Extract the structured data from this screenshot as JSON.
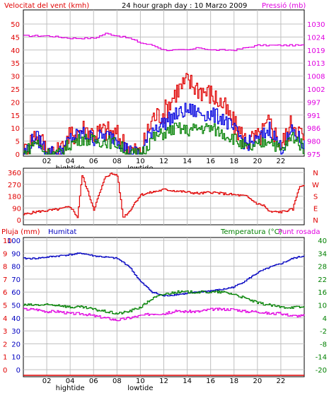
{
  "chart_data": [
    {
      "type": "line",
      "title": "24 hour graph day : 10 Marzo 2009",
      "left_axis_label": "Velocitat del vent (kmh)",
      "right_axis_label": "Pressió (mb)",
      "left_ticks": [
        "50",
        "45",
        "40",
        "35",
        "30",
        "25",
        "20",
        "15",
        "10",
        "5",
        "0"
      ],
      "right_ticks": [
        "1030",
        "1024",
        "1019",
        "1013",
        "1008",
        "1002",
        "997",
        "991",
        "986",
        "980",
        "975"
      ],
      "ylim_left": [
        0,
        50
      ],
      "ylim_right": [
        975,
        1030
      ],
      "x_ticks": [
        "02",
        "04",
        "06",
        "08",
        "10",
        "12",
        "14",
        "16",
        "18",
        "20",
        "22"
      ],
      "tide_labels": [
        {
          "hour": "04",
          "text": "hightide"
        },
        {
          "hour": "10",
          "text": "lowtide"
        }
      ],
      "series": [
        {
          "color": "#e000e0",
          "axis": "right",
          "x": [
            0,
            2,
            4,
            5,
            6,
            7,
            8,
            9,
            10,
            11,
            12,
            13,
            14,
            15,
            16,
            17,
            18,
            19,
            20,
            21,
            22,
            23,
            24
          ],
          "values": [
            1025,
            1025,
            1024,
            1024,
            1024,
            1026,
            1025,
            1024,
            1022,
            1021,
            1019,
            1019,
            1019,
            1020,
            1019,
            1019,
            1019,
            1020,
            1021,
            1021,
            1021,
            1021,
            1021
          ]
        },
        {
          "color": "#e00000",
          "axis": "left",
          "x": [
            0,
            1,
            2,
            3,
            4,
            5,
            6,
            7,
            8,
            9,
            10,
            11,
            12,
            13,
            14,
            15,
            16,
            17,
            18,
            19,
            20,
            21,
            22,
            23,
            24
          ],
          "values": [
            0,
            8,
            2,
            0,
            7,
            10,
            8,
            9,
            7,
            2,
            0,
            14,
            16,
            24,
            28,
            25,
            23,
            19,
            11,
            5,
            6,
            12,
            3,
            13,
            5
          ]
        },
        {
          "color": "#0000e0",
          "axis": "left",
          "x": [
            0,
            1,
            2,
            3,
            4,
            5,
            6,
            7,
            8,
            9,
            10,
            11,
            12,
            13,
            14,
            15,
            16,
            17,
            18,
            19,
            20,
            21,
            22,
            23,
            24
          ],
          "values": [
            0,
            7,
            1,
            0,
            6,
            8,
            6,
            7,
            6,
            1,
            0,
            10,
            12,
            15,
            17,
            16,
            15,
            14,
            9,
            4,
            5,
            10,
            2,
            9,
            3
          ]
        },
        {
          "color": "#008000",
          "axis": "left",
          "x": [
            0,
            1,
            2,
            3,
            4,
            5,
            6,
            7,
            8,
            9,
            10,
            11,
            12,
            13,
            14,
            15,
            16,
            17,
            18,
            19,
            20,
            21,
            22,
            23,
            24
          ],
          "values": [
            0,
            5,
            0,
            0,
            4,
            6,
            5,
            5,
            4,
            0,
            0,
            6,
            8,
            10,
            9,
            10,
            10,
            8,
            6,
            2,
            3,
            6,
            1,
            7,
            2
          ]
        }
      ]
    },
    {
      "type": "line",
      "left_ticks": [
        "360",
        "270",
        "180",
        "90",
        "0"
      ],
      "right_ticks": [
        "N",
        "W",
        "S",
        "E",
        "N"
      ],
      "ylim": [
        0,
        360
      ],
      "series": [
        {
          "color": "#e00000",
          "x": [
            0,
            1,
            2,
            3,
            4,
            4.6,
            5,
            6,
            7,
            7.5,
            8,
            8.5,
            9,
            9.5,
            10,
            11,
            12,
            13,
            14,
            15,
            16,
            17,
            18,
            19,
            19.5,
            20,
            20.5,
            21,
            22,
            23,
            23.5,
            24
          ],
          "values": [
            40,
            60,
            70,
            80,
            100,
            20,
            340,
            80,
            330,
            350,
            340,
            20,
            60,
            130,
            190,
            210,
            230,
            220,
            210,
            200,
            210,
            200,
            190,
            180,
            150,
            120,
            110,
            60,
            60,
            80,
            240,
            270
          ]
        }
      ]
    },
    {
      "type": "line",
      "left_axis_label": "Pluja (mm)",
      "left_axis_label2": "Humitat",
      "right_axis_label": "Temperatura (°C)",
      "right_axis_label2": "Punt rosada",
      "left_ticks": [
        {
          "rain": "10",
          "hum": "100"
        },
        {
          "rain": "9",
          "hum": "90"
        },
        {
          "rain": "8",
          "hum": "80"
        },
        {
          "rain": "7",
          "hum": "70"
        },
        {
          "rain": "6",
          "hum": "60"
        },
        {
          "rain": "5",
          "hum": "50"
        },
        {
          "rain": "4",
          "hum": "40"
        },
        {
          "rain": "3",
          "hum": "30"
        },
        {
          "rain": "2",
          "hum": "20"
        },
        {
          "rain": "1",
          "hum": "10"
        },
        {
          "rain": "0",
          "hum": "0"
        }
      ],
      "right_ticks": [
        "40",
        "34",
        "28",
        "22",
        "16",
        "10",
        "4",
        "-2",
        "-8",
        "-14",
        "-20"
      ],
      "x_ticks": [
        "02",
        "04",
        "06",
        "08",
        "10",
        "12",
        "14",
        "16",
        "18",
        "20",
        "22"
      ],
      "tide_labels": [
        {
          "hour": "04",
          "text": "hightide"
        },
        {
          "hour": "10",
          "text": "lowtide"
        }
      ],
      "ylim_humidity": [
        0,
        100
      ],
      "ylim_temperature": [
        -20,
        40
      ],
      "series": [
        {
          "color": "#0000c0",
          "axis": "humidity",
          "x": [
            0,
            1,
            2,
            3,
            4,
            5,
            6,
            7,
            8,
            9,
            10,
            11,
            12,
            13,
            14,
            15,
            16,
            17,
            18,
            19,
            20,
            21,
            22,
            23,
            24
          ],
          "values": [
            86,
            86,
            87,
            88,
            89,
            90,
            88,
            87,
            86,
            80,
            68,
            60,
            57,
            58,
            59,
            60,
            61,
            62,
            64,
            69,
            75,
            79,
            82,
            86,
            88
          ]
        },
        {
          "color": "#008000",
          "axis": "temperature",
          "x": [
            0,
            1,
            2,
            3,
            4,
            5,
            6,
            7,
            8,
            9,
            10,
            11,
            12,
            13,
            14,
            15,
            16,
            17,
            18,
            19,
            20,
            21,
            22,
            23,
            24
          ],
          "values": [
            10,
            10,
            10,
            10,
            9,
            9,
            8,
            7,
            6,
            7,
            9,
            13,
            15,
            16,
            16,
            16,
            16,
            16,
            15,
            13,
            11,
            10,
            9,
            9,
            9
          ]
        },
        {
          "color": "#e000e0",
          "axis": "temperature",
          "x": [
            0,
            1,
            2,
            3,
            4,
            5,
            6,
            7,
            8,
            9,
            10,
            11,
            12,
            13,
            14,
            15,
            16,
            17,
            18,
            19,
            20,
            21,
            22,
            23,
            24
          ],
          "values": [
            8,
            8,
            7,
            7,
            6,
            6,
            5,
            4,
            3,
            4,
            5,
            6,
            6,
            7,
            7,
            7,
            8,
            8,
            8,
            7,
            7,
            6,
            6,
            5,
            5
          ]
        },
        {
          "color": "#e00000",
          "axis": "rain",
          "x": [
            0,
            24
          ],
          "values": [
            0,
            0
          ]
        }
      ]
    }
  ]
}
